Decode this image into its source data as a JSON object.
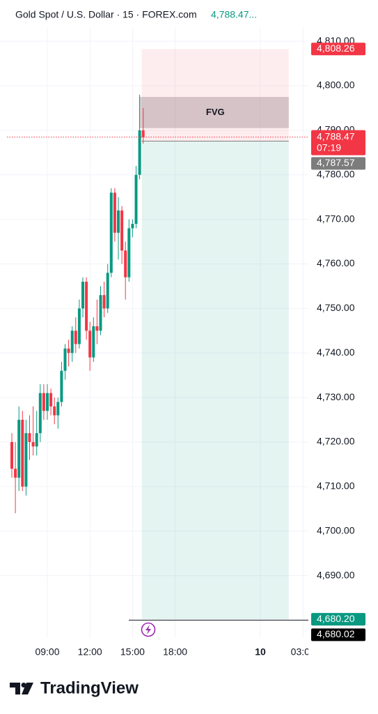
{
  "chart_data": {
    "type": "candlestick",
    "title": "Gold Spot / U.S. Dollar · 15 · FOREX.com",
    "header_price": "4,788.47...",
    "brand": "TradingView",
    "up_color": "#089981",
    "down_color": "#f23645",
    "grid": true,
    "ylim": [
      4676,
      4813
    ],
    "yticks": [
      {
        "value": 4690,
        "label": "4,690.00"
      },
      {
        "value": 4700,
        "label": "4,700.00"
      },
      {
        "value": 4710,
        "label": "4,710.00"
      },
      {
        "value": 4720,
        "label": "4,720.00"
      },
      {
        "value": 4730,
        "label": "4,730.00"
      },
      {
        "value": 4740,
        "label": "4,740.00"
      },
      {
        "value": 4750,
        "label": "4,750.00"
      },
      {
        "value": 4760,
        "label": "4,760.00"
      },
      {
        "value": 4770,
        "label": "4,770.00"
      },
      {
        "value": 4780,
        "label": "4,780.00"
      },
      {
        "value": 4790,
        "label": "4,790.00"
      },
      {
        "value": 4800,
        "label": "4,800.00"
      },
      {
        "value": 4810,
        "label": "4,810.00"
      }
    ],
    "categories": [
      null,
      null,
      null,
      null,
      null,
      null,
      null,
      null,
      null,
      null,
      "09:00",
      null,
      null,
      null,
      null,
      null,
      null,
      null,
      null,
      null,
      null,
      null,
      "12:00",
      null,
      null,
      null,
      null,
      null,
      null,
      null,
      null,
      null,
      null,
      null,
      "15:00",
      null,
      null,
      null,
      null,
      null,
      null,
      null,
      null,
      null,
      null,
      null,
      "18:00",
      null,
      null,
      null,
      null,
      null,
      null,
      null,
      null,
      null,
      null,
      null,
      null,
      null,
      null,
      null,
      null,
      null,
      null,
      null,
      null,
      null,
      null,
      null,
      "10",
      null,
      null,
      null,
      null,
      null,
      null,
      null,
      null,
      null,
      null,
      null,
      "03:00"
    ],
    "open": [
      4720,
      4714,
      4712,
      4725,
      4710,
      4722,
      4720,
      4719,
      4722,
      4731,
      4727,
      4731,
      4728,
      4726,
      4729,
      4736,
      4741,
      4740,
      4745,
      4742,
      4750,
      4756,
      4745,
      4739,
      4746,
      4745,
      4753,
      4750,
      4758,
      4776,
      4767,
      4772,
      4763,
      4757,
      4768,
      4769,
      4780,
      4790,
      null,
      null,
      null,
      null,
      null,
      null,
      null,
      null,
      null,
      null,
      null,
      null,
      null,
      null,
      null,
      null,
      null,
      null,
      null,
      null,
      null,
      null,
      null,
      null,
      null,
      null,
      null,
      null,
      null,
      null,
      null,
      null,
      null,
      null,
      null,
      null,
      null,
      null,
      null,
      null,
      null,
      null,
      null,
      null,
      null
    ],
    "high": [
      4722,
      4720,
      4728,
      4727,
      4725,
      4726,
      4728,
      4727,
      4733,
      4733,
      4733,
      4732,
      4730,
      4730,
      4738,
      4742,
      4743,
      4746,
      4748,
      4752,
      4757,
      4757,
      4747,
      4748,
      4752,
      4755,
      4756,
      4760,
      4777,
      4777,
      4775,
      4773,
      4765,
      4770,
      4770,
      4782,
      4798,
      4795,
      null,
      null,
      null,
      null,
      null,
      null,
      null,
      null,
      null,
      null,
      null,
      null,
      null,
      null,
      null,
      null,
      null,
      null,
      null,
      null,
      null,
      null,
      null,
      null,
      null,
      null,
      null,
      null,
      null,
      null,
      null,
      null,
      null,
      null,
      null,
      null,
      null,
      null,
      null,
      null,
      null,
      null,
      null,
      null,
      null
    ],
    "low": [
      4712,
      4704,
      4709,
      4709,
      4708,
      4716,
      4717,
      4717,
      4720,
      4725,
      4725,
      4726,
      4724,
      4723,
      4728,
      4734,
      4737,
      4738,
      4740,
      4741,
      4748,
      4743,
      4736,
      4738,
      4742,
      4744,
      4748,
      4749,
      4757,
      4765,
      4761,
      4760,
      4752,
      4756,
      4766,
      4768,
      4779,
      4787,
      null,
      null,
      null,
      null,
      null,
      null,
      null,
      null,
      null,
      null,
      null,
      null,
      null,
      null,
      null,
      null,
      null,
      null,
      null,
      null,
      null,
      null,
      null,
      null,
      null,
      null,
      null,
      null,
      null,
      null,
      null,
      null,
      null,
      null,
      null,
      null,
      null,
      null,
      null,
      null,
      null,
      null,
      null,
      null,
      null
    ],
    "close": [
      4714,
      4712,
      4725,
      4710,
      4722,
      4720,
      4719,
      4722,
      4731,
      4727,
      4731,
      4728,
      4726,
      4729,
      4736,
      4741,
      4740,
      4745,
      4742,
      4750,
      4756,
      4745,
      4739,
      4746,
      4745,
      4753,
      4750,
      4758,
      4776,
      4767,
      4772,
      4763,
      4757,
      4768,
      4769,
      4780,
      4790,
      4788.47,
      null,
      null,
      null,
      null,
      null,
      null,
      null,
      null,
      null,
      null,
      null,
      null,
      null,
      null,
      null,
      null,
      null,
      null,
      null,
      null,
      null,
      null,
      null,
      null,
      null,
      null,
      null,
      null,
      null,
      null,
      null,
      null,
      null,
      null,
      null,
      null,
      null,
      null,
      null,
      null,
      null,
      null,
      null,
      null,
      null
    ],
    "fvg": {
      "label": "FVG",
      "top": 4797.5,
      "bottom": 4790.5
    },
    "position": {
      "stop": {
        "value": 4808.26,
        "label": "4,808.26"
      },
      "entry": {
        "value": 4787.57,
        "label": "4,787.57"
      },
      "target": {
        "value": 4680.2,
        "label": "4,680.20"
      }
    },
    "last_price": {
      "value": 4788.47,
      "label": "4,788.47",
      "countdown": "07:19"
    },
    "level_line": {
      "value": 4680.02,
      "label": "4,680.02"
    }
  }
}
